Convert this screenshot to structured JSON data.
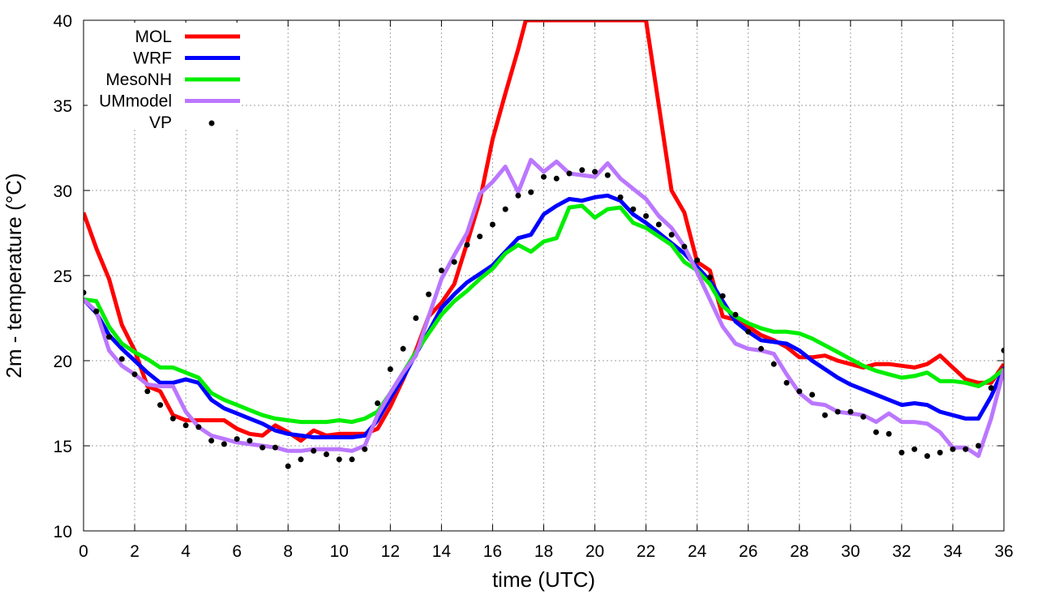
{
  "chart_data": {
    "type": "line",
    "title": "",
    "xlabel": "time (UTC)",
    "ylabel": "2m - temperature (°C)",
    "xlim": [
      0,
      36
    ],
    "ylim": [
      10,
      40
    ],
    "xticks": [
      0,
      2,
      4,
      6,
      8,
      10,
      12,
      14,
      16,
      18,
      20,
      22,
      24,
      26,
      28,
      30,
      32,
      34,
      36
    ],
    "yticks": [
      10,
      15,
      20,
      25,
      30,
      35,
      40
    ],
    "grid": true,
    "legend_position": "top-left",
    "series": [
      {
        "name": "MOL",
        "style": "line",
        "color": "#ff0000",
        "x": [
          0,
          0.5,
          1,
          1.5,
          2,
          2.5,
          3,
          3.5,
          4,
          4.5,
          5,
          5.5,
          6,
          6.5,
          7,
          7.5,
          8,
          8.5,
          9,
          9.5,
          10,
          10.5,
          11,
          11.5,
          12,
          12.5,
          13,
          13.5,
          14,
          14.5,
          15,
          15.5,
          16,
          16.5,
          17,
          17.3,
          22,
          22.5,
          23,
          23.5,
          24,
          24.5,
          25,
          25.5,
          26,
          26.5,
          27,
          27.5,
          28,
          28.5,
          29,
          29.5,
          30,
          30.5,
          31,
          31.5,
          32,
          32.5,
          33,
          33.5,
          34,
          34.5,
          35,
          35.5,
          36
        ],
        "y": [
          28.7,
          26.6,
          24.8,
          22.1,
          20.6,
          18.5,
          18.2,
          16.8,
          16.5,
          16.5,
          16.5,
          16.5,
          16.0,
          15.7,
          15.6,
          16.2,
          15.8,
          15.3,
          15.9,
          15.6,
          15.7,
          15.7,
          15.7,
          16.0,
          17.3,
          18.9,
          20.6,
          22.6,
          23.4,
          24.5,
          26.9,
          29.4,
          33.0,
          35.7,
          38.3,
          40.0,
          40.0,
          35.0,
          30.0,
          28.7,
          25.8,
          25.3,
          22.6,
          22.4,
          22.0,
          21.5,
          21.2,
          20.8,
          20.2,
          20.2,
          20.3,
          20.0,
          19.8,
          19.6,
          19.8,
          19.8,
          19.7,
          19.6,
          19.8,
          20.3,
          19.6,
          18.9,
          18.7,
          18.7,
          19.8
        ]
      },
      {
        "name": "WRF",
        "style": "line",
        "color": "#0000ff",
        "x": [
          0,
          0.5,
          1,
          1.5,
          2,
          2.5,
          3,
          3.5,
          4,
          4.5,
          5,
          5.5,
          6,
          6.5,
          7,
          7.5,
          8,
          8.5,
          9,
          9.5,
          10,
          10.5,
          11,
          11.5,
          12,
          12.5,
          13,
          13.5,
          14,
          14.5,
          15,
          15.5,
          16,
          16.5,
          17,
          17.5,
          18,
          18.5,
          19,
          19.5,
          20,
          20.5,
          21,
          21.5,
          22,
          22.5,
          23,
          23.5,
          24,
          24.5,
          25,
          25.5,
          26,
          26.5,
          27,
          27.5,
          28,
          28.5,
          29,
          29.5,
          30,
          30.5,
          31,
          31.5,
          32,
          32.5,
          33,
          33.5,
          34,
          34.5,
          35,
          35.5,
          36
        ],
        "y": [
          23.6,
          22.8,
          21.5,
          20.7,
          20.0,
          19.3,
          18.7,
          18.7,
          18.9,
          18.7,
          17.7,
          17.2,
          16.9,
          16.6,
          16.3,
          15.9,
          15.7,
          15.6,
          15.5,
          15.5,
          15.5,
          15.5,
          15.6,
          16.5,
          17.8,
          19.0,
          20.4,
          21.7,
          23.1,
          23.9,
          24.6,
          25.1,
          25.6,
          26.4,
          27.2,
          27.4,
          28.6,
          29.1,
          29.5,
          29.4,
          29.6,
          29.7,
          29.4,
          28.6,
          28.1,
          27.5,
          26.9,
          26.3,
          25.5,
          24.7,
          23.5,
          22.3,
          21.7,
          21.2,
          21.1,
          21.0,
          20.6,
          20.0,
          19.5,
          19.0,
          18.6,
          18.3,
          18.0,
          17.7,
          17.4,
          17.5,
          17.4,
          17.0,
          16.8,
          16.6,
          16.6,
          17.9,
          19.6
        ]
      },
      {
        "name": "MesoNH",
        "style": "line",
        "color": "#00ee00",
        "x": [
          0,
          0.5,
          1,
          1.5,
          2,
          2.5,
          3,
          3.5,
          4,
          4.5,
          5,
          5.5,
          6,
          6.5,
          7,
          7.5,
          8,
          8.5,
          9,
          9.5,
          10,
          10.5,
          11,
          11.5,
          12,
          12.5,
          13,
          13.5,
          14,
          14.5,
          15,
          15.5,
          16,
          16.5,
          17,
          17.5,
          18,
          18.5,
          19,
          19.5,
          20,
          20.5,
          21,
          21.5,
          22,
          22.5,
          23,
          23.5,
          24,
          24.5,
          25,
          25.5,
          26,
          26.5,
          27,
          27.5,
          28,
          28.5,
          29,
          29.5,
          30,
          30.5,
          31,
          31.5,
          32,
          32.5,
          33,
          33.5,
          34,
          34.5,
          35,
          35.5,
          36
        ],
        "y": [
          23.6,
          23.5,
          22.0,
          21.0,
          20.5,
          20.1,
          19.6,
          19.6,
          19.3,
          19.0,
          18.1,
          17.7,
          17.4,
          17.1,
          16.8,
          16.6,
          16.5,
          16.4,
          16.4,
          16.4,
          16.5,
          16.4,
          16.6,
          17.0,
          18.1,
          19.3,
          20.5,
          21.6,
          22.7,
          23.5,
          24.1,
          24.8,
          25.4,
          26.3,
          26.8,
          26.4,
          27.0,
          27.2,
          29.0,
          29.1,
          28.4,
          28.9,
          29.0,
          28.1,
          27.8,
          27.3,
          26.8,
          25.8,
          25.3,
          24.5,
          23.2,
          22.6,
          22.2,
          21.9,
          21.7,
          21.7,
          21.6,
          21.3,
          20.9,
          20.5,
          20.1,
          19.7,
          19.4,
          19.2,
          19.0,
          19.1,
          19.3,
          18.8,
          18.8,
          18.7,
          18.5,
          18.9,
          19.5
        ]
      },
      {
        "name": "UMmodel",
        "style": "line",
        "color": "#bb77ff",
        "x": [
          0,
          0.5,
          1,
          1.5,
          2,
          2.5,
          3,
          3.5,
          4,
          4.5,
          5,
          5.5,
          6,
          6.5,
          7,
          7.5,
          8,
          8.5,
          9,
          9.5,
          10,
          10.5,
          11,
          11.5,
          12,
          12.5,
          13,
          13.5,
          14,
          14.5,
          15,
          15.5,
          16,
          16.5,
          17,
          17.5,
          18,
          18.5,
          19,
          19.5,
          20,
          20.5,
          21,
          21.5,
          22,
          22.5,
          23,
          23.5,
          24,
          24.5,
          25,
          25.5,
          26,
          26.5,
          27,
          27.5,
          28,
          28.5,
          29,
          29.5,
          30,
          30.5,
          31,
          31.5,
          32,
          32.5,
          33,
          33.5,
          34,
          34.5,
          35,
          35.5,
          36
        ],
        "y": [
          23.6,
          22.9,
          20.6,
          19.7,
          19.2,
          18.6,
          18.5,
          18.5,
          17.0,
          16.1,
          15.6,
          15.4,
          15.2,
          15.1,
          15.0,
          14.9,
          14.7,
          14.7,
          14.8,
          14.8,
          14.8,
          14.7,
          15.0,
          16.8,
          18.1,
          19.3,
          20.3,
          22.6,
          24.8,
          26.2,
          27.5,
          29.8,
          30.5,
          31.4,
          29.9,
          31.8,
          31.1,
          31.7,
          31.0,
          30.9,
          30.8,
          31.6,
          30.7,
          30.1,
          29.5,
          28.5,
          27.8,
          26.7,
          25.2,
          23.6,
          22.0,
          21.0,
          20.7,
          20.6,
          20.4,
          19.2,
          18.1,
          17.5,
          17.4,
          17.0,
          16.9,
          16.8,
          16.4,
          16.9,
          16.4,
          16.4,
          16.3,
          15.8,
          14.9,
          14.9,
          14.4,
          16.6,
          19.5
        ]
      },
      {
        "name": "VP",
        "style": "points",
        "color": "#000000",
        "x": [
          0,
          0.5,
          1,
          1.5,
          2,
          2.5,
          3,
          3.5,
          4,
          4.5,
          5,
          5.5,
          6,
          6.5,
          7,
          7.5,
          8,
          8.5,
          9,
          9.5,
          10,
          10.5,
          11,
          11.5,
          12,
          12.5,
          13,
          13.5,
          14,
          14.5,
          15,
          15.5,
          16,
          16.5,
          17,
          17.5,
          18,
          18.5,
          19,
          19.5,
          20,
          20.5,
          21,
          21.5,
          22,
          22.5,
          23,
          23.5,
          24,
          24.5,
          25,
          25.5,
          26,
          26.5,
          27,
          27.5,
          28,
          28.5,
          29,
          29.5,
          30,
          30.5,
          31,
          31.5,
          32,
          32.5,
          33,
          33.5,
          34,
          34.5,
          35,
          35.5,
          36
        ],
        "y": [
          24.0,
          22.9,
          21.4,
          20.1,
          19.2,
          18.2,
          17.4,
          16.6,
          16.2,
          16.1,
          15.3,
          15.1,
          15.4,
          15.3,
          14.9,
          14.9,
          13.8,
          14.2,
          14.7,
          14.5,
          14.2,
          14.2,
          14.8,
          17.5,
          19.5,
          20.7,
          22.5,
          23.9,
          25.3,
          25.8,
          26.8,
          27.3,
          28.0,
          28.9,
          29.7,
          29.9,
          30.8,
          30.7,
          31.0,
          31.2,
          31.1,
          30.9,
          29.6,
          28.9,
          28.5,
          28.0,
          27.4,
          26.7,
          25.9,
          24.9,
          23.8,
          22.7,
          21.7,
          20.7,
          19.8,
          18.7,
          18.2,
          18.0,
          16.8,
          17.0,
          17.0,
          16.7,
          15.8,
          15.7,
          14.6,
          14.8,
          14.4,
          14.6,
          14.8,
          14.8,
          15.0,
          18.4,
          20.6
        ]
      }
    ]
  }
}
